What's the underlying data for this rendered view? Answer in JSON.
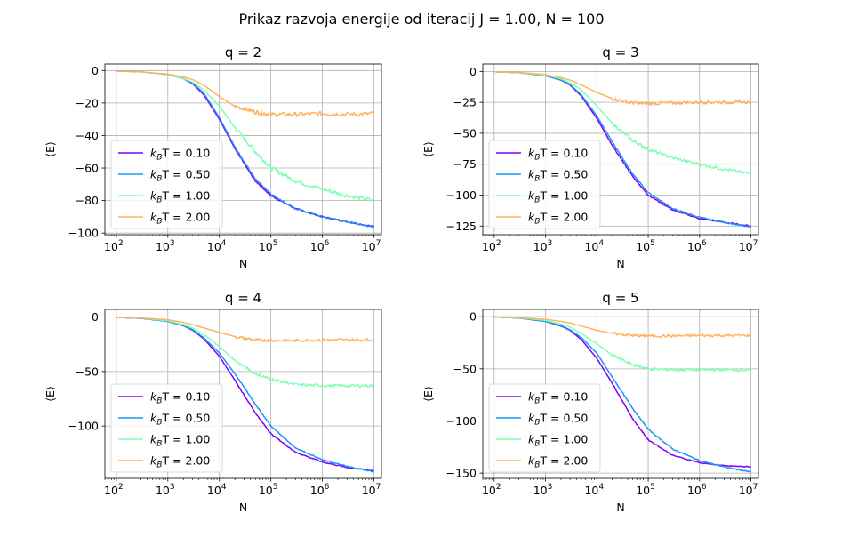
{
  "figure_title": "Prikaz razvoja energije od iteracij J = 1.00, N = 100",
  "chart_data": [
    {
      "type": "line",
      "title": "q = 2",
      "xlabel": "N",
      "ylabel": "⟨E⟩",
      "xscale": "log",
      "xlim": [
        60,
        14000000
      ],
      "ylim": [
        -101,
        4
      ],
      "yticks": [
        0,
        -20,
        -40,
        -60,
        -80,
        -100
      ],
      "xticks_exp": [
        2,
        3,
        4,
        5,
        6,
        7
      ],
      "grid": true,
      "legend": "lower-left",
      "series": [
        {
          "name": "k_BT = 0.10",
          "label_pre": "k",
          "label_sub": "B",
          "label_post": "T = 0.10",
          "color": "#8000ff",
          "x": [
            100,
            300,
            1000,
            2000,
            3000,
            5000,
            10000,
            20000,
            50000,
            100000,
            300000,
            1000000,
            3000000,
            10000000
          ],
          "y": [
            -0.3,
            -0.8,
            -2.5,
            -5.0,
            -8.0,
            -15.0,
            -30.0,
            -48.0,
            -68.0,
            -77.0,
            -85.0,
            -90.0,
            -93.0,
            -96.0
          ]
        },
        {
          "name": "k_BT = 0.50",
          "label_pre": "k",
          "label_sub": "B",
          "label_post": "T = 0.50",
          "color": "#1996f3",
          "x": [
            100,
            300,
            1000,
            2000,
            3000,
            5000,
            10000,
            20000,
            50000,
            100000,
            300000,
            1000000,
            3000000,
            10000000
          ],
          "y": [
            -0.3,
            -0.8,
            -2.5,
            -5.0,
            -7.5,
            -14.0,
            -29.0,
            -47.0,
            -67.0,
            -76.0,
            -85.0,
            -90.0,
            -93.0,
            -96.5
          ]
        },
        {
          "name": "k_BT = 1.00",
          "label_pre": "k",
          "label_sub": "B",
          "label_post": "T = 1.00",
          "color": "#80ffb4",
          "x": [
            100,
            300,
            1000,
            2000,
            3000,
            5000,
            10000,
            20000,
            50000,
            100000,
            300000,
            1000000,
            3000000,
            10000000
          ],
          "y": [
            -0.3,
            -0.8,
            -2.5,
            -5.0,
            -7.0,
            -12.0,
            -22.0,
            -35.0,
            -50.0,
            -60.0,
            -68.0,
            -73.0,
            -77.0,
            -80.0
          ]
        },
        {
          "name": "k_BT = 2.00",
          "label_pre": "k",
          "label_sub": "B",
          "label_post": "T = 2.00",
          "color": "#ffb360",
          "x": [
            100,
            300,
            1000,
            2000,
            3000,
            5000,
            10000,
            20000,
            50000,
            100000,
            300000,
            1000000,
            3000000,
            10000000
          ],
          "y": [
            -0.3,
            -0.8,
            -2.2,
            -4.0,
            -5.5,
            -9.0,
            -16.0,
            -22.0,
            -25.5,
            -27.0,
            -27.0,
            -26.5,
            -27.0,
            -26.5
          ]
        }
      ]
    },
    {
      "type": "line",
      "title": "q = 3",
      "xlabel": "N",
      "ylabel": "⟨E⟩",
      "xscale": "log",
      "xlim": [
        60,
        14000000
      ],
      "ylim": [
        -132,
        6
      ],
      "yticks": [
        0,
        -25,
        -50,
        -75,
        -100,
        -125
      ],
      "xticks_exp": [
        2,
        3,
        4,
        5,
        6,
        7
      ],
      "grid": true,
      "legend": "lower-left",
      "series": [
        {
          "name": "k_BT = 0.10",
          "label_pre": "k",
          "label_sub": "B",
          "label_post": "T = 0.10",
          "color": "#8000ff",
          "x": [
            100,
            300,
            1000,
            2000,
            3000,
            5000,
            10000,
            20000,
            50000,
            100000,
            300000,
            1000000,
            3000000,
            10000000
          ],
          "y": [
            -0.3,
            -1.0,
            -3.5,
            -7.0,
            -11.0,
            -20.0,
            -38.0,
            -60.0,
            -85.0,
            -100.0,
            -112.0,
            -119.0,
            -122.0,
            -125.0
          ]
        },
        {
          "name": "k_BT = 0.50",
          "label_pre": "k",
          "label_sub": "B",
          "label_post": "T = 0.50",
          "color": "#1996f3",
          "x": [
            100,
            300,
            1000,
            2000,
            3000,
            5000,
            10000,
            20000,
            50000,
            100000,
            300000,
            1000000,
            3000000,
            10000000
          ],
          "y": [
            -0.3,
            -1.0,
            -3.5,
            -7.0,
            -10.5,
            -19.0,
            -36.0,
            -57.0,
            -83.0,
            -98.0,
            -111.0,
            -118.0,
            -122.0,
            -126.0
          ]
        },
        {
          "name": "k_BT = 1.00",
          "label_pre": "k",
          "label_sub": "B",
          "label_post": "T = 1.00",
          "color": "#80ffb4",
          "x": [
            100,
            300,
            1000,
            2000,
            3000,
            5000,
            10000,
            20000,
            50000,
            100000,
            300000,
            1000000,
            3000000,
            10000000
          ],
          "y": [
            -0.3,
            -1.0,
            -3.0,
            -6.0,
            -9.0,
            -15.0,
            -28.0,
            -42.0,
            -56.0,
            -63.0,
            -70.0,
            -75.0,
            -79.0,
            -83.0
          ]
        },
        {
          "name": "k_BT = 2.00",
          "label_pre": "k",
          "label_sub": "B",
          "label_post": "T = 2.00",
          "color": "#ffb360",
          "x": [
            100,
            300,
            1000,
            2000,
            3000,
            5000,
            10000,
            20000,
            50000,
            100000,
            300000,
            1000000,
            3000000,
            10000000
          ],
          "y": [
            -0.3,
            -0.8,
            -2.5,
            -5.0,
            -7.0,
            -11.0,
            -17.0,
            -22.0,
            -25.5,
            -26.0,
            -25.5,
            -25.0,
            -25.0,
            -25.0
          ]
        }
      ]
    },
    {
      "type": "line",
      "title": "q = 4",
      "xlabel": "N",
      "ylabel": "⟨E⟩",
      "xscale": "log",
      "xlim": [
        60,
        14000000
      ],
      "ylim": [
        -148,
        7
      ],
      "yticks": [
        0,
        -50,
        -100
      ],
      "xticks_exp": [
        2,
        3,
        4,
        5,
        6,
        7
      ],
      "grid": true,
      "legend": "lower-left",
      "series": [
        {
          "name": "k_BT = 0.10",
          "label_pre": "k",
          "label_sub": "B",
          "label_post": "T = 0.10",
          "color": "#8000ff",
          "x": [
            100,
            300,
            1000,
            2000,
            3000,
            5000,
            10000,
            20000,
            50000,
            100000,
            300000,
            1000000,
            3000000,
            10000000
          ],
          "y": [
            -0.3,
            -1.2,
            -4.0,
            -8.0,
            -12.0,
            -20.0,
            -36.0,
            -58.0,
            -88.0,
            -107.0,
            -124.0,
            -133.0,
            -138.0,
            -141.0
          ]
        },
        {
          "name": "k_BT = 0.50",
          "label_pre": "k",
          "label_sub": "B",
          "label_post": "T = 0.50",
          "color": "#1996f3",
          "x": [
            100,
            300,
            1000,
            2000,
            3000,
            5000,
            10000,
            20000,
            50000,
            100000,
            300000,
            1000000,
            3000000,
            10000000
          ],
          "y": [
            -0.3,
            -1.2,
            -4.0,
            -8.0,
            -11.5,
            -19.0,
            -33.0,
            -52.0,
            -80.0,
            -100.0,
            -120.0,
            -131.0,
            -137.0,
            -142.0
          ]
        },
        {
          "name": "k_BT = 1.00",
          "label_pre": "k",
          "label_sub": "B",
          "label_post": "T = 1.00",
          "color": "#80ffb4",
          "x": [
            100,
            300,
            1000,
            2000,
            3000,
            5000,
            10000,
            20000,
            50000,
            100000,
            300000,
            1000000,
            3000000,
            10000000
          ],
          "y": [
            -0.3,
            -1.0,
            -3.5,
            -7.0,
            -10.0,
            -16.0,
            -27.0,
            -40.0,
            -52.0,
            -57.0,
            -62.0,
            -63.0,
            -63.0,
            -63.0
          ]
        },
        {
          "name": "k_BT = 2.00",
          "label_pre": "k",
          "label_sub": "B",
          "label_post": "T = 2.00",
          "color": "#ffb360",
          "x": [
            100,
            300,
            1000,
            2000,
            3000,
            5000,
            10000,
            20000,
            50000,
            100000,
            300000,
            1000000,
            3000000,
            10000000
          ],
          "y": [
            -0.3,
            -0.8,
            -2.5,
            -5.0,
            -7.0,
            -10.0,
            -14.0,
            -18.0,
            -21.0,
            -21.5,
            -21.5,
            -21.0,
            -21.0,
            -21.0
          ]
        }
      ]
    },
    {
      "type": "line",
      "title": "q = 5",
      "xlabel": "N",
      "ylabel": "⟨E⟩",
      "xscale": "log",
      "xlim": [
        60,
        14000000
      ],
      "ylim": [
        -155,
        7
      ],
      "yticks": [
        0,
        -50,
        -100,
        -150
      ],
      "xticks_exp": [
        2,
        3,
        4,
        5,
        6,
        7
      ],
      "grid": true,
      "legend": "lower-left",
      "series": [
        {
          "name": "k_BT = 0.10",
          "label_pre": "k",
          "label_sub": "B",
          "label_post": "T = 0.10",
          "color": "#8000ff",
          "x": [
            100,
            300,
            1000,
            2000,
            3000,
            5000,
            10000,
            20000,
            50000,
            100000,
            300000,
            1000000,
            3000000,
            10000000
          ],
          "y": [
            -0.3,
            -1.2,
            -4.5,
            -9.0,
            -13.0,
            -22.0,
            -40.0,
            -64.0,
            -98.0,
            -118.0,
            -133.0,
            -140.0,
            -143.0,
            -144.0
          ]
        },
        {
          "name": "k_BT = 0.50",
          "label_pre": "k",
          "label_sub": "B",
          "label_post": "T = 0.50",
          "color": "#1996f3",
          "x": [
            100,
            300,
            1000,
            2000,
            3000,
            5000,
            10000,
            20000,
            50000,
            100000,
            300000,
            1000000,
            3000000,
            10000000
          ],
          "y": [
            -0.3,
            -1.2,
            -4.5,
            -8.5,
            -12.5,
            -20.0,
            -35.0,
            -58.0,
            -88.0,
            -108.0,
            -127.0,
            -138.0,
            -144.0,
            -149.0
          ]
        },
        {
          "name": "k_BT = 1.00",
          "label_pre": "k",
          "label_sub": "B",
          "label_post": "T = 1.00",
          "color": "#80ffb4",
          "x": [
            100,
            300,
            1000,
            2000,
            3000,
            5000,
            10000,
            20000,
            50000,
            100000,
            300000,
            1000000,
            3000000,
            10000000
          ],
          "y": [
            -0.3,
            -1.0,
            -3.5,
            -7.0,
            -10.0,
            -16.0,
            -26.0,
            -37.0,
            -46.0,
            -50.0,
            -51.0,
            -51.0,
            -51.0,
            -51.0
          ]
        },
        {
          "name": "k_BT = 2.00",
          "label_pre": "k",
          "label_sub": "B",
          "label_post": "T = 2.00",
          "color": "#ffb360",
          "x": [
            100,
            300,
            1000,
            2000,
            3000,
            5000,
            10000,
            20000,
            50000,
            100000,
            300000,
            1000000,
            3000000,
            10000000
          ],
          "y": [
            -0.3,
            -0.8,
            -2.5,
            -4.5,
            -6.0,
            -9.0,
            -13.0,
            -16.0,
            -18.0,
            -18.5,
            -18.5,
            -18.0,
            -18.0,
            -18.0
          ]
        }
      ]
    }
  ]
}
